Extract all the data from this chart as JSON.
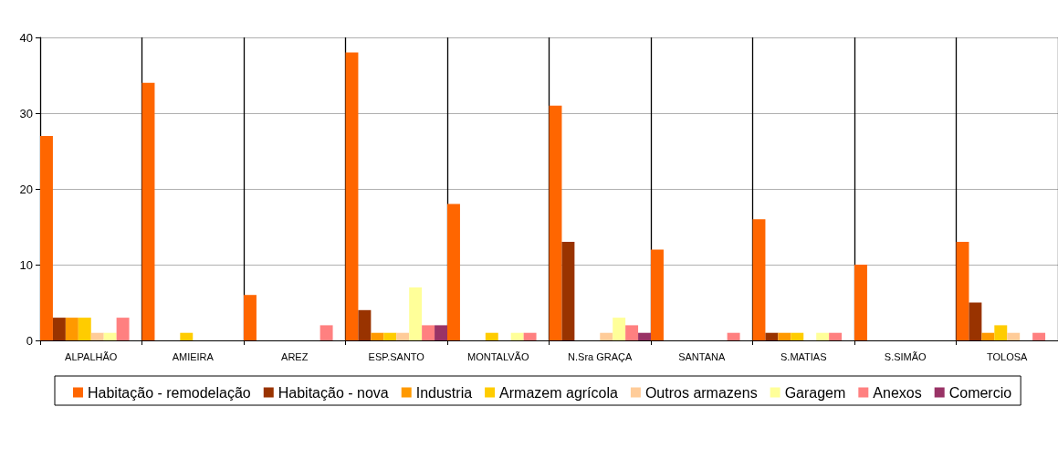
{
  "chart_data": {
    "type": "bar",
    "categories": [
      "ALPALHÃO",
      "AMIEIRA",
      "AREZ",
      "ESP.SANTO",
      "MONTALVÃO",
      "N.Sra GRAÇA",
      "SANTANA",
      "S.MATIAS",
      "S.SIMÃO",
      "TOLOSA"
    ],
    "series": [
      {
        "name": "Habitação - remodelação",
        "color": "#ff6600",
        "values": [
          27,
          34,
          6,
          38,
          18,
          31,
          12,
          16,
          10,
          13
        ]
      },
      {
        "name": "Habitação - nova",
        "color": "#993300",
        "values": [
          3,
          0,
          0,
          4,
          0,
          13,
          0,
          1,
          0,
          5
        ]
      },
      {
        "name": "Industria",
        "color": "#ff9900",
        "values": [
          3,
          0,
          0,
          1,
          0,
          0,
          0,
          1,
          0,
          1
        ]
      },
      {
        "name": "Armazem agrícola",
        "color": "#ffcc00",
        "values": [
          3,
          1,
          0,
          1,
          1,
          0,
          0,
          1,
          0,
          2
        ]
      },
      {
        "name": "Outros armazens",
        "color": "#ffcc99",
        "values": [
          1,
          0,
          0,
          1,
          0,
          1,
          0,
          0,
          0,
          1
        ]
      },
      {
        "name": "Garagem",
        "color": "#ffff99",
        "values": [
          1,
          0,
          0,
          7,
          1,
          3,
          0,
          1,
          0,
          0
        ]
      },
      {
        "name": "Anexos",
        "color": "#ff8080",
        "values": [
          3,
          0,
          2,
          2,
          1,
          2,
          1,
          1,
          0,
          1
        ]
      },
      {
        "name": "Comercio",
        "color": "#993366",
        "values": [
          0,
          0,
          0,
          2,
          0,
          1,
          0,
          0,
          0,
          0
        ]
      }
    ],
    "ylim": [
      0,
      40
    ],
    "yticks": [
      0,
      10,
      20,
      30,
      40
    ],
    "grid": true,
    "legend": "bottom"
  }
}
